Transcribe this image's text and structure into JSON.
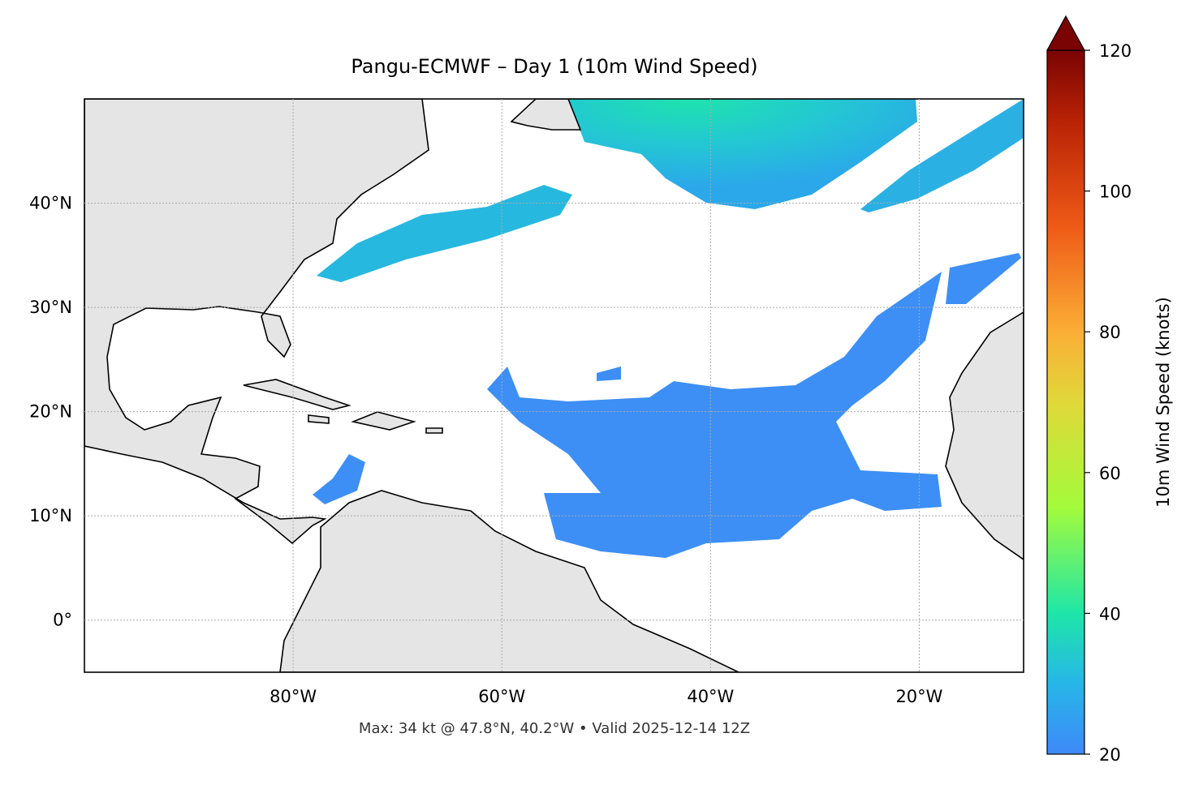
{
  "chart_data": {
    "type": "map",
    "title": "Pangu-ECMWF – Day 1 (10m Wind Speed)",
    "subtitle": "Max: 34 kt @ 47.8°N, 40.2°W • Valid 2025-12-14 12Z",
    "xlim": [
      -100,
      -10
    ],
    "ylim": [
      -5,
      50
    ],
    "xticks": [
      {
        "value": -80,
        "label": "80°W"
      },
      {
        "value": -60,
        "label": "60°W"
      },
      {
        "value": -40,
        "label": "40°W"
      },
      {
        "value": -20,
        "label": "20°W"
      }
    ],
    "yticks": [
      {
        "value": 0,
        "label": "0°"
      },
      {
        "value": 10,
        "label": "10°N"
      },
      {
        "value": 20,
        "label": "20°N"
      },
      {
        "value": 30,
        "label": "30°N"
      },
      {
        "value": 40,
        "label": "40°N"
      }
    ],
    "grid": true,
    "colorbar": {
      "label": "10m Wind Speed (knots)",
      "lim": [
        20,
        120
      ],
      "ticks": [
        20,
        40,
        60,
        80,
        100,
        120
      ],
      "extend": "max"
    }
  }
}
